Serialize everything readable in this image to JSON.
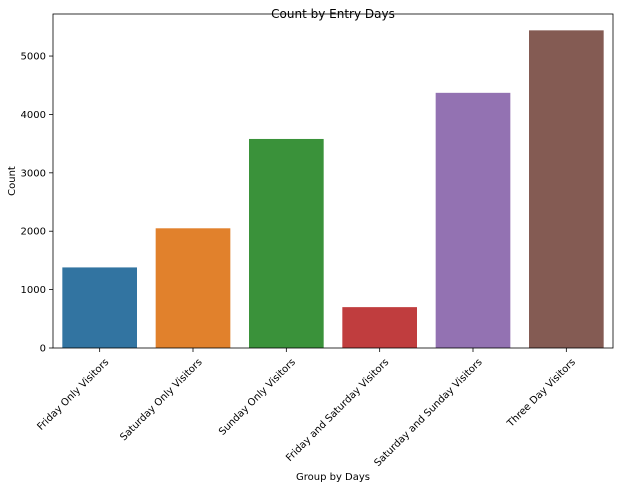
{
  "chart_data": {
    "type": "bar",
    "title": "Count by Entry Days",
    "xlabel": "Group by Days",
    "ylabel": "Count",
    "categories": [
      "Friday Only Visitors",
      "Saturday Only Visitors",
      "Sunday Only Visitors",
      "Friday and Saturday Visitors",
      "Saturday and Sunday Visitors",
      "Three Day Visitors"
    ],
    "values": [
      1380,
      2050,
      3580,
      700,
      4370,
      5440
    ],
    "colors": [
      "#3274a1",
      "#e1812c",
      "#3a923a",
      "#c03d3e",
      "#9372b2",
      "#845b53"
    ],
    "ylim": [
      0,
      5720
    ],
    "yticks": [
      0,
      1000,
      2000,
      3000,
      4000,
      5000
    ],
    "xtick_rotation": 45,
    "grid": false,
    "legend": "none"
  }
}
